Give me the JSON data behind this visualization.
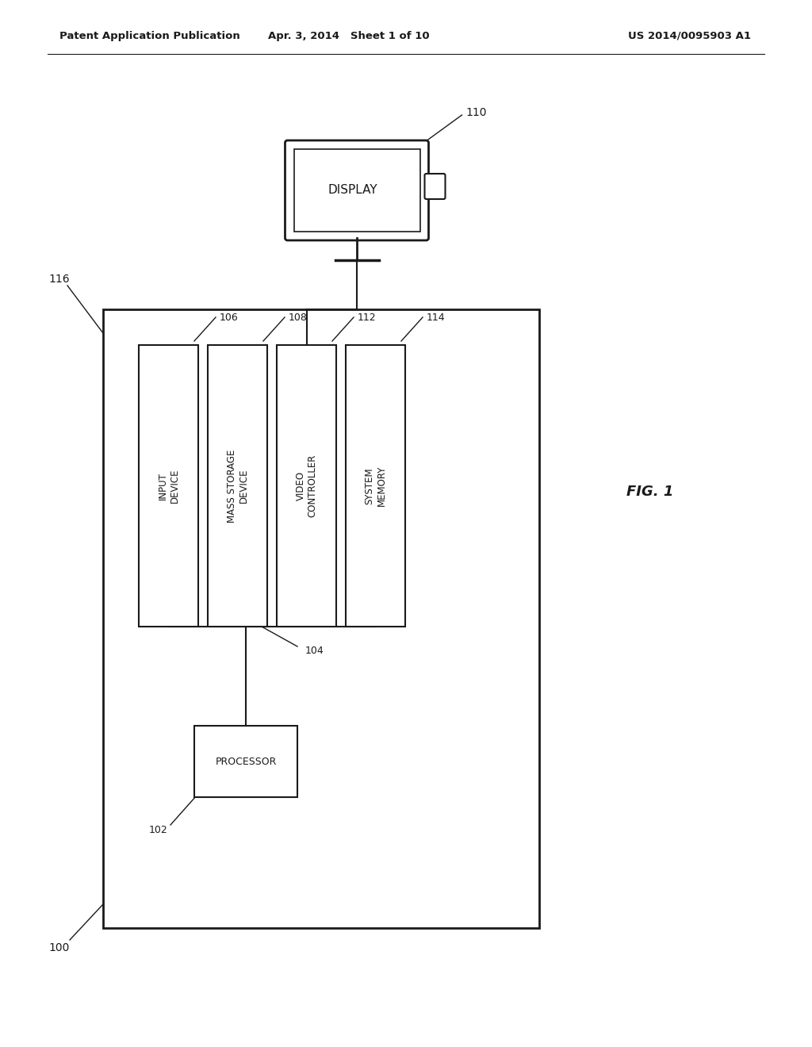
{
  "bg_color": "#ffffff",
  "line_color": "#1a1a1a",
  "header_left": "Patent Application Publication",
  "header_mid": "Apr. 3, 2014   Sheet 1 of 10",
  "header_right": "US 2014/0095903 A1",
  "fig_label": "FIG. 1",
  "display_text": "DISPLAY",
  "display_ref": "110",
  "system_box_ref": "100",
  "system_box_ref_top": "116",
  "bus_ref": "104",
  "comp_boxes": [
    {
      "label": "INPUT\nDEVICE",
      "ref": "106"
    },
    {
      "label": "MASS STORAGE\nDEVICE",
      "ref": "108"
    },
    {
      "label": "VIDEO\nCONTROLLER",
      "ref": "112"
    },
    {
      "label": "SYSTEM\nMEMORY",
      "ref": "114"
    }
  ],
  "proc_label": "PROCESSOR",
  "proc_ref": "102"
}
